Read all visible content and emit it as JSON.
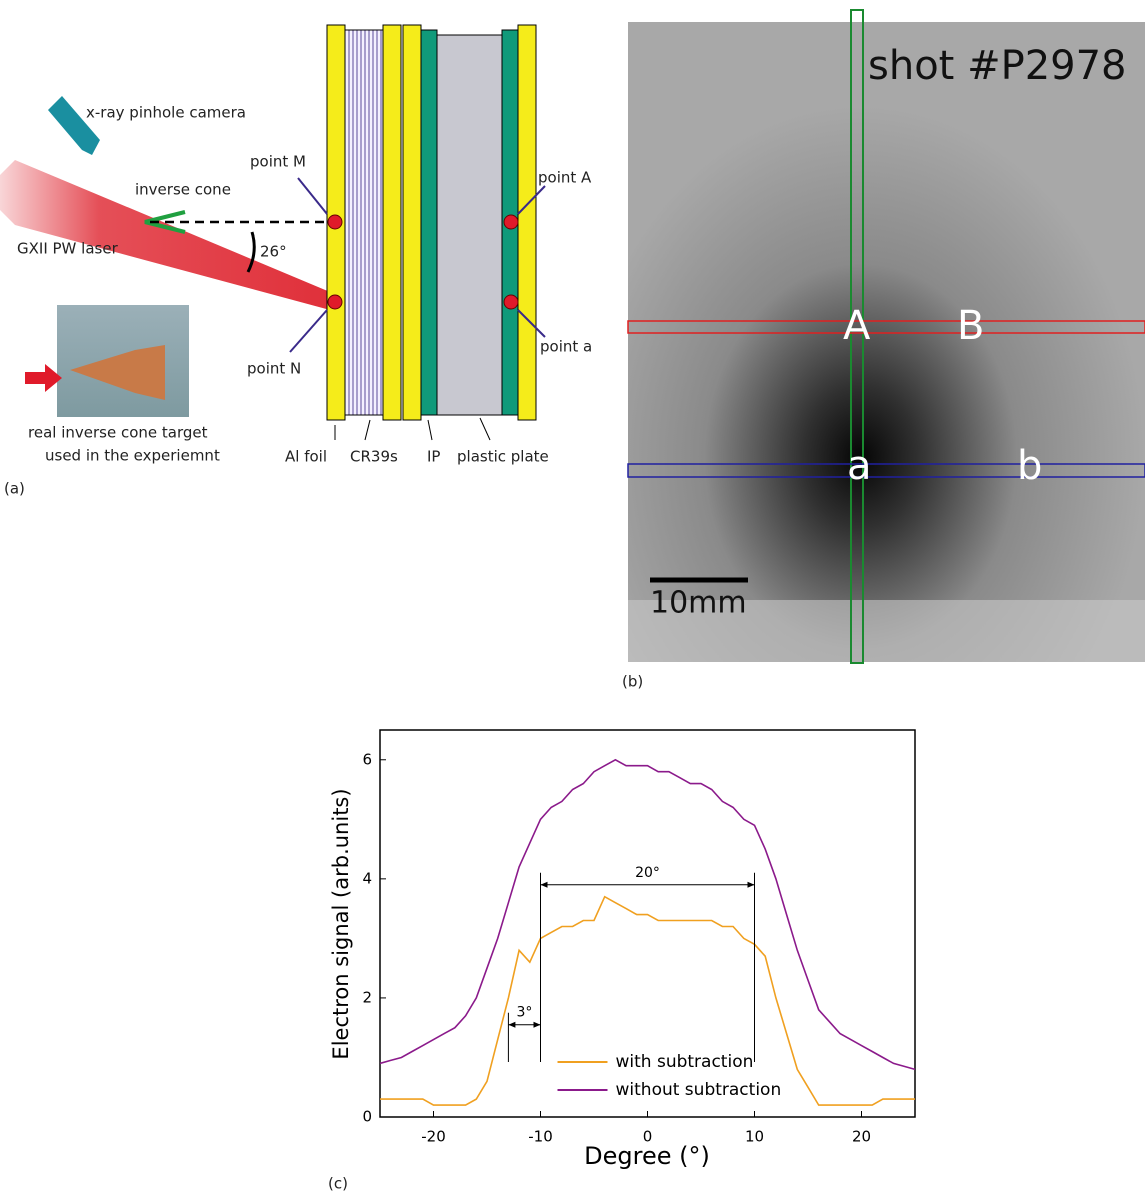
{
  "panel_a": {
    "label": "(a)",
    "camera": "x-ray pinhole camera",
    "cone": "inverse cone",
    "laser": "GXII PW laser",
    "angle": "26°",
    "point_m": "point M",
    "point_n": "point N",
    "point_A": "point A",
    "point_a": "point a",
    "photo_caption": [
      "real inverse cone target",
      "used in the experiemnt"
    ],
    "layers": [
      "Al foil",
      "CR39s",
      "IP",
      "plastic plate"
    ]
  },
  "panel_b": {
    "label": "(b)",
    "shot": "shot #P2978",
    "markers": [
      "A",
      "B",
      "a",
      "b"
    ],
    "scale": "10mm"
  },
  "chart_data": {
    "type": "line",
    "panel_label": "(c)",
    "xlabel": "Degree (°)",
    "ylabel": "Electron signal (arb.units)",
    "x": [
      -25,
      -24,
      -23,
      -22,
      -21,
      -20,
      -19,
      -18,
      -17,
      -16,
      -15,
      -14,
      -13,
      -12,
      -11,
      -10,
      -9,
      -8,
      -7,
      -6,
      -5,
      -4,
      -3,
      -2,
      -1,
      0,
      1,
      2,
      3,
      4,
      5,
      6,
      7,
      8,
      9,
      10,
      11,
      12,
      13,
      14,
      15,
      16,
      17,
      18,
      19,
      20,
      21,
      22,
      23,
      24,
      25
    ],
    "series": [
      {
        "name": "with subtraction",
        "color": "#f0a020",
        "values": [
          0.3,
          0.3,
          0.3,
          0.3,
          0.3,
          0.2,
          0.2,
          0.2,
          0.2,
          0.3,
          0.6,
          1.3,
          2.0,
          2.8,
          2.6,
          3.0,
          3.1,
          3.2,
          3.2,
          3.3,
          3.3,
          3.7,
          3.6,
          3.5,
          3.4,
          3.4,
          3.3,
          3.3,
          3.3,
          3.3,
          3.3,
          3.3,
          3.2,
          3.2,
          3.0,
          2.9,
          2.7,
          2.0,
          1.4,
          0.8,
          0.5,
          0.2,
          0.2,
          0.2,
          0.2,
          0.2,
          0.2,
          0.3,
          0.3,
          0.3,
          0.3
        ]
      },
      {
        "name": "without subtraction",
        "color": "#8b1a8b",
        "values": [
          0.9,
          0.95,
          1.0,
          1.1,
          1.2,
          1.3,
          1.4,
          1.5,
          1.7,
          2.0,
          2.5,
          3.0,
          3.6,
          4.2,
          4.6,
          5.0,
          5.2,
          5.3,
          5.5,
          5.6,
          5.8,
          5.9,
          6.0,
          5.9,
          5.9,
          5.9,
          5.8,
          5.8,
          5.7,
          5.6,
          5.6,
          5.5,
          5.3,
          5.2,
          5.0,
          4.9,
          4.5,
          4.0,
          3.4,
          2.8,
          2.3,
          1.8,
          1.6,
          1.4,
          1.3,
          1.2,
          1.1,
          1.0,
          0.9,
          0.85,
          0.8
        ]
      }
    ],
    "xlim": [
      -25,
      25
    ],
    "ylim": [
      0,
      6.5
    ],
    "xticks": [
      -20,
      -10,
      0,
      10,
      20
    ],
    "yticks": [
      0,
      2,
      4,
      6
    ],
    "annotations": [
      {
        "label": "20°",
        "x": [
          -10,
          10
        ],
        "y": 3.9
      },
      {
        "label": "3°",
        "x": [
          -13,
          -10
        ],
        "y": 1.55
      }
    ],
    "legend": "lower center"
  }
}
